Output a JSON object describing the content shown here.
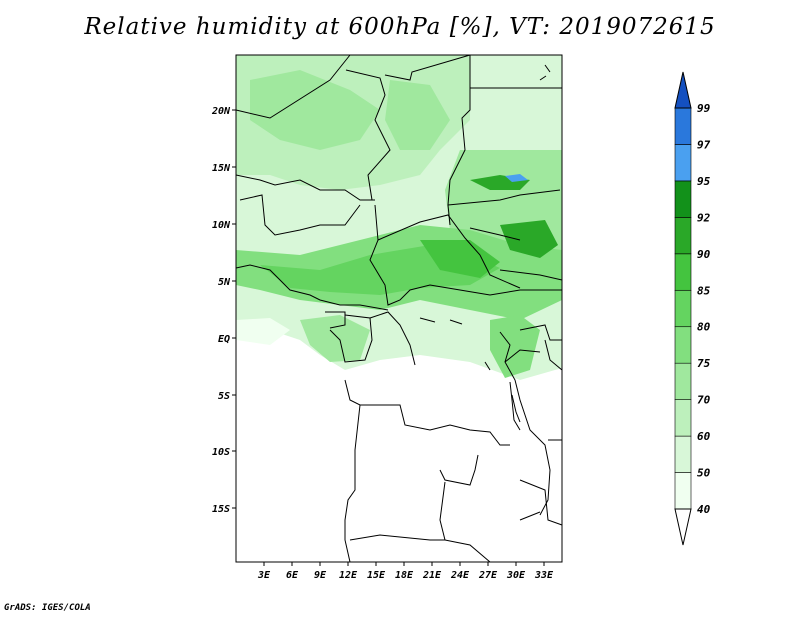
{
  "title": "Relative humidity at 600hPa [%], VT: 2019072615",
  "credit": "GrADS: IGES/COLA",
  "map": {
    "lat_labels": [
      "20N",
      "15N",
      "10N",
      "5N",
      "EQ",
      "5S",
      "10S",
      "15S"
    ],
    "lon_labels": [
      "3E",
      "6E",
      "9E",
      "12E",
      "15E",
      "18E",
      "21E",
      "24E",
      "27E",
      "30E",
      "33E"
    ]
  },
  "colorbar": {
    "levels": [
      "40",
      "50",
      "60",
      "70",
      "75",
      "80",
      "85",
      "90",
      "92",
      "95",
      "97",
      "99"
    ],
    "colors": [
      "#f0fff0",
      "#d8f7d8",
      "#bdf0bc",
      "#a0e89e",
      "#82df7f",
      "#64d460",
      "#44c43f",
      "#2aa828",
      "#12911a",
      "#4aa0f0",
      "#2a78dc",
      "#1450c0"
    ],
    "under_color": "#ffffff"
  }
}
